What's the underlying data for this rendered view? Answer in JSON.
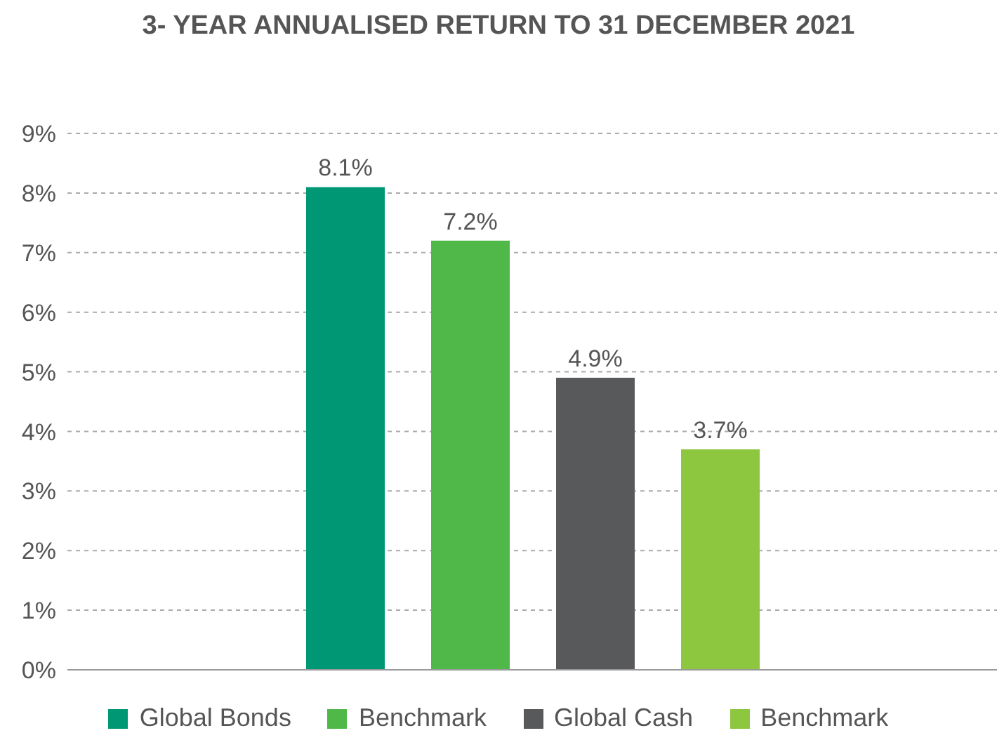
{
  "chart_data": {
    "type": "bar",
    "title": "3- YEAR ANNUALISED RETURN TO 31 DECEMBER 2021",
    "categories": [
      null
    ],
    "series": [
      {
        "name": "Global Bonds",
        "color": "#009874",
        "values": [
          8.1
        ],
        "value_labels": [
          "8.1%"
        ]
      },
      {
        "name": "Benchmark",
        "color": "#50b848",
        "values": [
          7.2
        ],
        "value_labels": [
          "7.2%"
        ]
      },
      {
        "name": "Global Cash",
        "color": "#58595b",
        "values": [
          4.9
        ],
        "value_labels": [
          "4.9%"
        ]
      },
      {
        "name": "Benchmark",
        "color": "#8dc63f",
        "values": [
          3.7
        ],
        "value_labels": [
          "3.7%"
        ]
      }
    ],
    "ylim": [
      0,
      9
    ],
    "yticks": [
      {
        "value": 0,
        "label": "0%"
      },
      {
        "value": 1,
        "label": "1%"
      },
      {
        "value": 2,
        "label": "2%"
      },
      {
        "value": 3,
        "label": "3%"
      },
      {
        "value": 4,
        "label": "4%"
      },
      {
        "value": 5,
        "label": "5%"
      },
      {
        "value": 6,
        "label": "6%"
      },
      {
        "value": 7,
        "label": "7%"
      },
      {
        "value": 8,
        "label": "8%"
      },
      {
        "value": 9,
        "label": "9%"
      }
    ],
    "grid": "y",
    "legend": "bottom"
  }
}
